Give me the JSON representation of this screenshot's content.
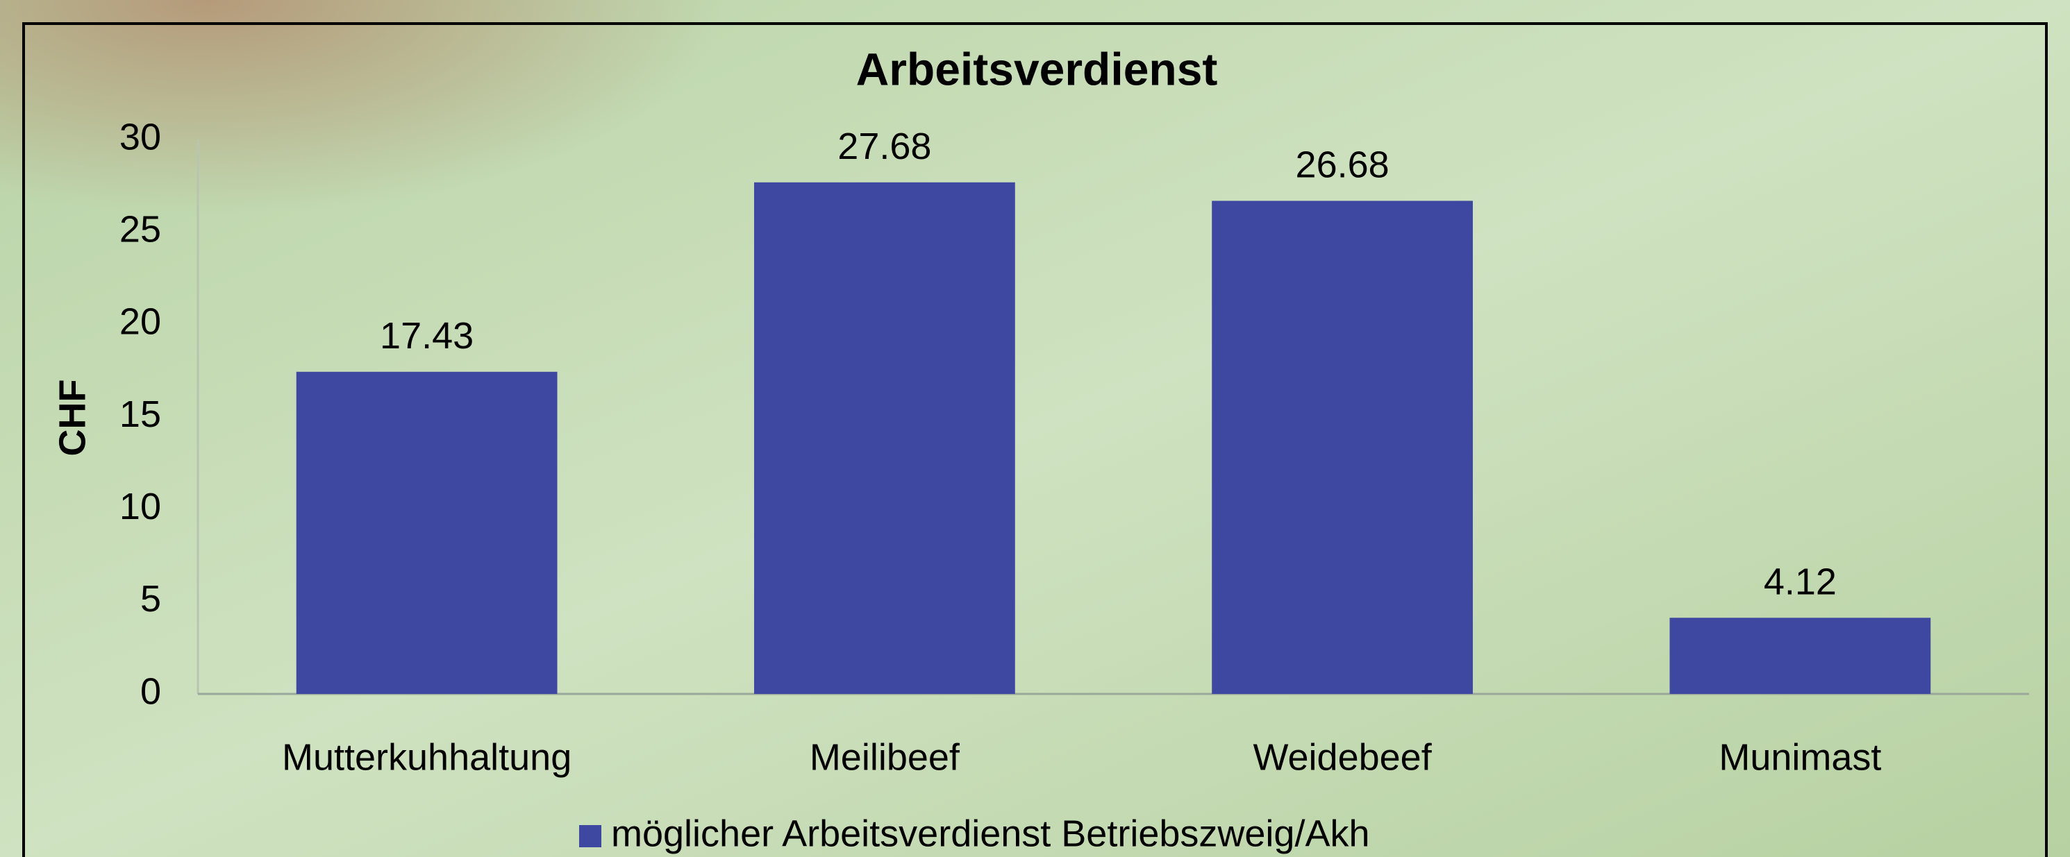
{
  "chart_data": {
    "type": "bar",
    "title": "Arbeitsverdienst",
    "y_label": "CHF",
    "categories": [
      "Mutterkuhhaltung",
      "Meilibeef",
      "Weidebeef",
      "Munimast"
    ],
    "series": [
      {
        "name": "möglicher Arbeitsverdienst Betriebszweig/Akh",
        "color": "#3f48a0",
        "values": [
          17.43,
          27.68,
          26.68,
          4.12
        ]
      }
    ],
    "ylim": [
      0,
      30
    ],
    "yticks": [
      0,
      5,
      10,
      15,
      20,
      25,
      30
    ],
    "grid": false,
    "legend": "bottom",
    "data_labels": true
  }
}
